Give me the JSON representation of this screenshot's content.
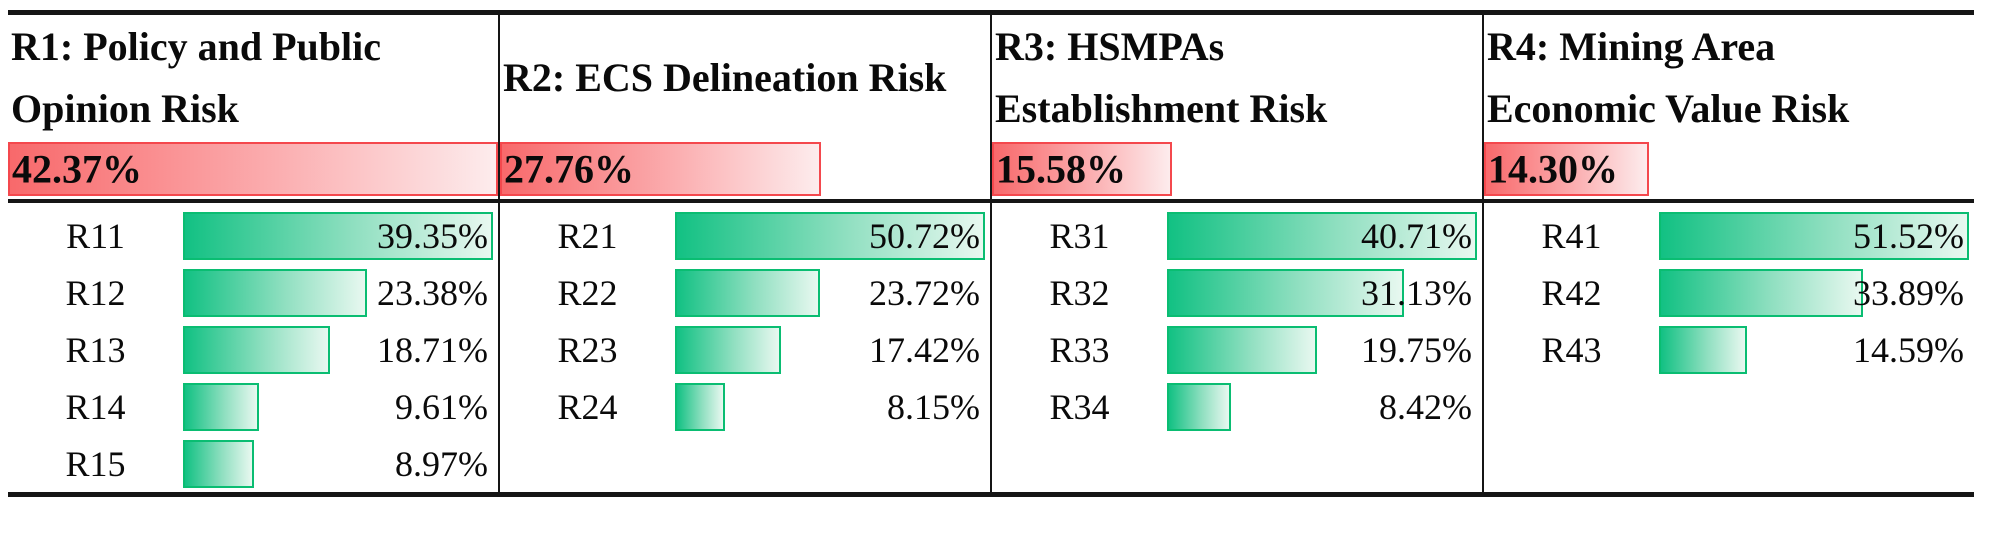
{
  "chart_data": {
    "type": "bar",
    "title": "Risk weight table: four risk categories with sub-indicator weights",
    "layout": {
      "orientation": "horizontal",
      "legend": false,
      "grid": "table",
      "red_bars_scaled_to_max": 42.37,
      "green_bars_scaled_to_group_max": true
    },
    "red_scale_max": 42.37,
    "colors": {
      "red_bar_start": "#f8696b",
      "red_bar_end": "#fdeced",
      "red_bar_border": "#f4484d",
      "green_bar_start": "#12c183",
      "green_bar_end": "#e8f8f0",
      "green_bar_border": "#0abd72",
      "table_line": "#151515",
      "text": "#0a0a0a"
    },
    "groups": [
      {
        "id": "R1",
        "title": "R1: Policy and Public Opinion Risk",
        "title_lines": [
          "R1: Policy and Public",
          "Opinion Risk"
        ],
        "value": 42.37,
        "label": "42.37%",
        "items": [
          {
            "id": "R11",
            "value": 39.35,
            "label": "39.35%"
          },
          {
            "id": "R12",
            "value": 23.38,
            "label": "23.38%"
          },
          {
            "id": "R13",
            "value": 18.71,
            "label": "18.71%"
          },
          {
            "id": "R14",
            "value": 9.61,
            "label": "9.61%"
          },
          {
            "id": "R15",
            "value": 8.97,
            "label": "8.97%"
          }
        ]
      },
      {
        "id": "R2",
        "title": "R2: ECS Delineation Risk",
        "title_lines": [
          "R2: ECS Delineation Risk"
        ],
        "value": 27.76,
        "label": "27.76%",
        "items": [
          {
            "id": "R21",
            "value": 50.72,
            "label": "50.72%"
          },
          {
            "id": "R22",
            "value": 23.72,
            "label": "23.72%"
          },
          {
            "id": "R23",
            "value": 17.42,
            "label": "17.42%"
          },
          {
            "id": "R24",
            "value": 8.15,
            "label": "8.15%"
          }
        ]
      },
      {
        "id": "R3",
        "title": "R3: HSMPAs Establishment Risk",
        "title_lines": [
          "R3: HSMPAs",
          "Establishment Risk"
        ],
        "value": 15.58,
        "label": "15.58%",
        "items": [
          {
            "id": "R31",
            "value": 40.71,
            "label": "40.71%"
          },
          {
            "id": "R32",
            "value": 31.13,
            "label": "31.13%"
          },
          {
            "id": "R33",
            "value": 19.75,
            "label": "19.75%"
          },
          {
            "id": "R34",
            "value": 8.42,
            "label": "8.42%"
          }
        ]
      },
      {
        "id": "R4",
        "title": "R4: Mining Area Economic Value Risk",
        "title_lines": [
          "R4: Mining Area",
          "Economic Value Risk"
        ],
        "value": 14.3,
        "label": "14.30%",
        "items": [
          {
            "id": "R41",
            "value": 51.52,
            "label": "51.52%"
          },
          {
            "id": "R42",
            "value": 33.89,
            "label": "33.89%"
          },
          {
            "id": "R43",
            "value": 14.59,
            "label": "14.59%"
          }
        ]
      }
    ]
  }
}
